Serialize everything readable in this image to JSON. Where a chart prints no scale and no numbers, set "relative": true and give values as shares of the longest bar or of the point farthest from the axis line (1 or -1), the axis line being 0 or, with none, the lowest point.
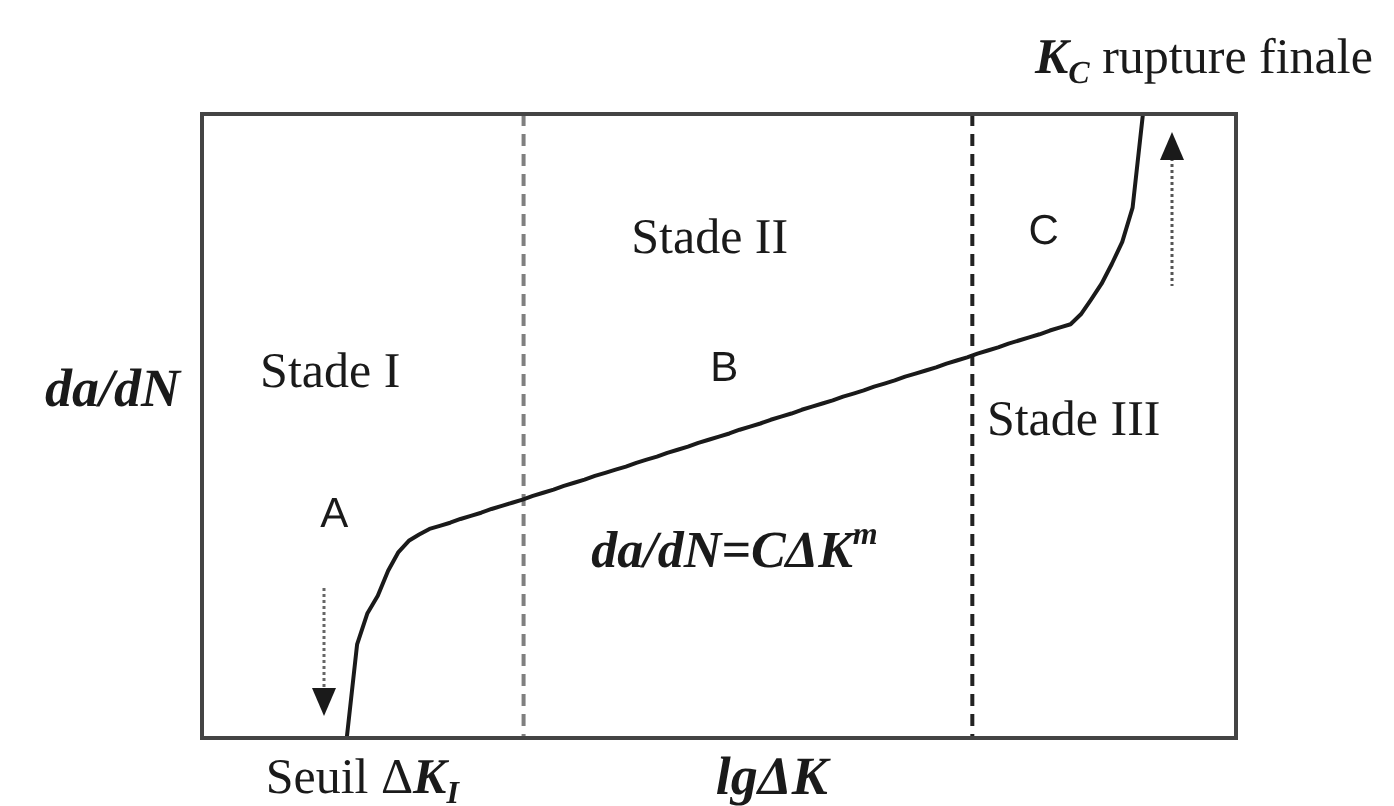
{
  "chart_data": {
    "type": "line",
    "relative": true,
    "xlabel": "lgΔK",
    "ylabel": "da/dN",
    "categories": [
      null,
      null,
      null,
      null,
      null,
      null,
      null,
      null,
      null,
      null,
      null,
      null,
      null,
      null,
      null,
      null,
      null,
      null,
      null,
      null,
      null,
      null,
      null,
      null,
      null,
      null,
      null,
      null,
      null,
      null,
      null,
      null,
      null,
      null,
      null,
      null,
      null,
      null,
      null,
      null,
      null,
      null,
      null,
      null,
      null,
      null,
      null,
      null,
      null,
      null,
      null,
      null,
      null,
      null,
      null,
      null,
      null,
      null,
      null,
      null,
      null,
      null,
      null,
      null,
      null,
      null,
      null,
      null,
      null,
      null,
      null,
      null,
      null,
      null,
      null,
      null,
      null,
      null,
      null,
      null,
      null,
      null,
      null,
      null,
      null,
      null,
      null,
      null,
      null,
      null,
      null,
      null,
      null,
      null,
      null,
      null,
      null,
      null,
      null,
      null,
      null
    ],
    "series": [
      {
        "color": "#1a1a1a",
        "values": [
          null,
          null,
          null,
          null,
          null,
          null,
          null,
          null,
          null,
          null,
          null,
          null,
          null,
          null,
          0,
          0.15,
          0.2,
          0.228,
          0.268,
          0.298,
          0.316,
          0.326,
          0.335,
          0.34,
          0.345,
          0.351,
          0.356,
          0.361,
          0.367,
          0.372,
          0.377,
          0.382,
          0.388,
          0.393,
          0.398,
          0.404,
          0.409,
          0.414,
          0.42,
          0.425,
          0.43,
          0.435,
          0.441,
          0.446,
          0.451,
          0.457,
          0.462,
          0.467,
          0.473,
          0.478,
          0.483,
          0.488,
          0.494,
          0.499,
          0.504,
          0.51,
          0.515,
          0.52,
          0.526,
          0.531,
          0.536,
          0.541,
          0.547,
          0.552,
          0.557,
          0.563,
          0.568,
          0.573,
          0.579,
          0.584,
          0.589,
          0.594,
          0.6,
          0.605,
          0.61,
          0.616,
          0.621,
          0.626,
          0.632,
          0.637,
          0.642,
          0.647,
          0.653,
          0.658,
          0.663,
          0.679,
          0.703,
          0.728,
          0.76,
          0.795,
          0.85,
          1,
          null,
          null,
          null,
          null,
          null,
          null,
          null,
          null,
          null
        ]
      }
    ],
    "annotations": [
      "Stade I",
      "A",
      "Stade II",
      "B",
      "C",
      "Stade III",
      "da/dN=CΔK$^{m}$",
      "K$_{C}$ rupture finale",
      "Seuil ΔK$_{I}$"
    ],
    "tick_labels": false,
    "marker": "none",
    "line_style": "solid"
  }
}
